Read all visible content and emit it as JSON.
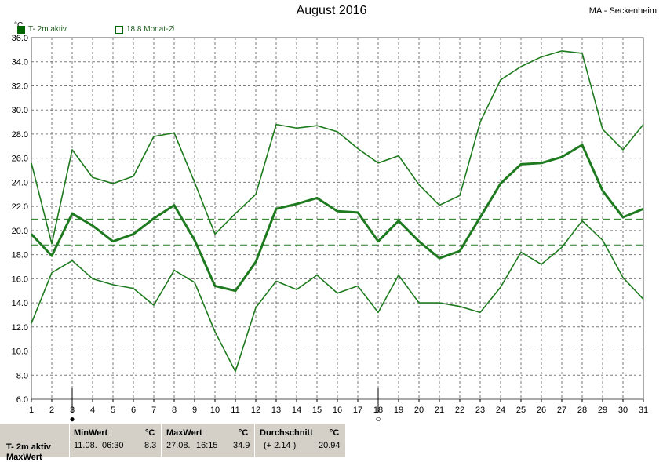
{
  "header": {
    "title": "August 2016",
    "station": "MA - Seckenheim",
    "unit": "°C"
  },
  "legend": {
    "series_label": "T- 2m aktiv",
    "mean_label": "18.8 Monat-Ø"
  },
  "colors": {
    "line": "#1e7a1e",
    "grid": "#7a7a7a",
    "panel": "#d4d0c8"
  },
  "chart_data": {
    "type": "line",
    "x": [
      1,
      2,
      3,
      4,
      5,
      6,
      7,
      8,
      9,
      10,
      11,
      12,
      13,
      14,
      15,
      16,
      17,
      18,
      19,
      20,
      21,
      22,
      23,
      24,
      25,
      26,
      27,
      28,
      29,
      30,
      31
    ],
    "xlim": [
      1,
      31
    ],
    "ylim": [
      6.0,
      36.0
    ],
    "yticks": [
      "6.0",
      "8.0",
      "10.0",
      "12.0",
      "14.0",
      "16.0",
      "18.0",
      "20.0",
      "22.0",
      "24.0",
      "26.0",
      "28.0",
      "30.0",
      "32.0",
      "34.0",
      "36.0"
    ],
    "xticks": [
      "1",
      "2",
      "3",
      "4",
      "5",
      "6",
      "7",
      "8",
      "9",
      "10",
      "11",
      "12",
      "13",
      "14",
      "15",
      "16",
      "17",
      "18",
      "19",
      "20",
      "21",
      "22",
      "23",
      "24",
      "25",
      "26",
      "27",
      "28",
      "29",
      "30",
      "31"
    ],
    "grid": true,
    "series": [
      {
        "key": "max",
        "values": [
          25.6,
          18.9,
          26.7,
          24.4,
          23.9,
          24.5,
          27.8,
          28.1,
          24.0,
          19.7,
          21.4,
          23.0,
          28.8,
          28.5,
          28.7,
          28.2,
          26.8,
          25.6,
          26.2,
          23.8,
          22.1,
          22.9,
          29.0,
          32.5,
          33.6,
          34.4,
          34.9,
          34.7,
          28.4,
          26.7,
          28.8
        ]
      },
      {
        "key": "mean",
        "values": [
          19.7,
          17.9,
          21.4,
          20.4,
          19.1,
          19.7,
          21.0,
          22.1,
          19.2,
          15.4,
          15.0,
          17.4,
          21.8,
          22.2,
          22.7,
          21.6,
          21.5,
          19.1,
          20.8,
          19.1,
          17.7,
          18.3,
          21.1,
          23.9,
          25.5,
          25.6,
          26.1,
          27.1,
          23.3,
          21.1,
          21.8
        ]
      },
      {
        "key": "min",
        "values": [
          12.3,
          16.5,
          17.5,
          16.0,
          15.5,
          15.2,
          13.8,
          16.7,
          15.7,
          11.6,
          8.3,
          13.6,
          15.8,
          15.1,
          16.3,
          14.8,
          15.4,
          13.2,
          16.3,
          14.0,
          14.0,
          13.7,
          13.2,
          15.3,
          18.2,
          17.2,
          18.6,
          20.8,
          19.2,
          16.1,
          14.3
        ]
      }
    ],
    "reference_lines": [
      {
        "label": "Monat-Ø",
        "value": 18.8
      },
      {
        "label": "Durchschnitt",
        "value": 20.94
      }
    ],
    "markers": [
      {
        "day": 3,
        "symbol": "●"
      },
      {
        "day": 18,
        "symbol": "○"
      }
    ]
  },
  "stats": {
    "row_label_1": "T- 2m aktiv",
    "row_label_2": "MaxWert",
    "min": {
      "header": "MinWert",
      "unit": "°C",
      "date": "11.08.",
      "time": "06:30",
      "value": "8.3"
    },
    "max": {
      "header": "MaxWert",
      "unit": "°C",
      "date": "27.08.",
      "time": "16:15",
      "value": "34.9"
    },
    "avg": {
      "header": "Durchschnitt",
      "unit": "°C",
      "delta": "(+ 2.14 )",
      "value": "20.94"
    }
  }
}
